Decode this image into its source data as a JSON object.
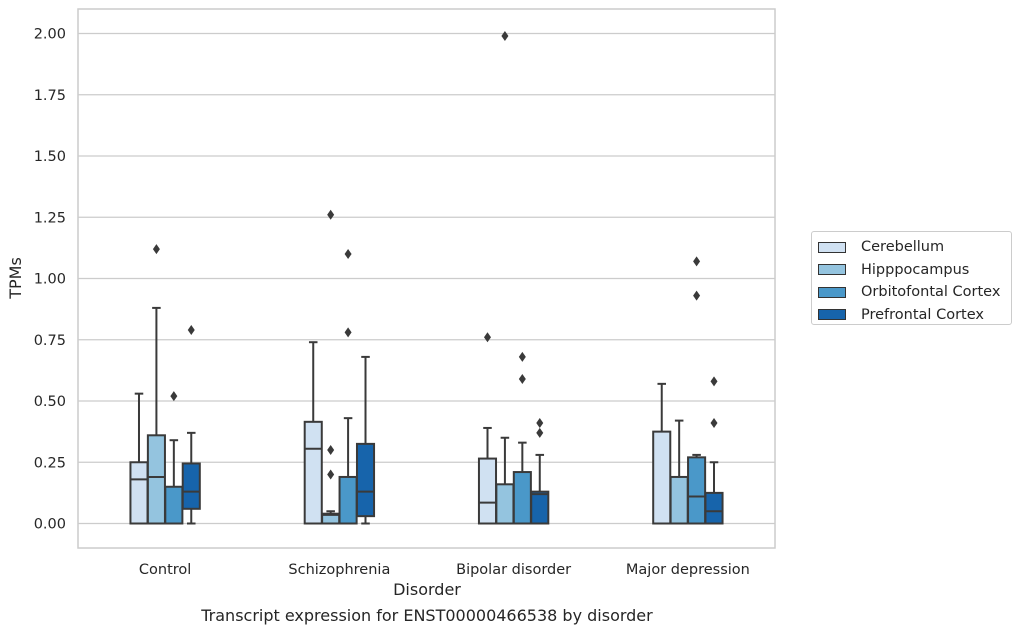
{
  "chart_data": {
    "type": "box",
    "title": "",
    "xlabel": "Disorder",
    "ylabel": "TPMs",
    "caption": "Transcript expression for ENST00000466538 by disorder",
    "ylim": [
      -0.1,
      2.1
    ],
    "yticks": [
      "0.00",
      "0.25",
      "0.50",
      "0.75",
      "1.00",
      "1.25",
      "1.50",
      "1.75",
      "2.00"
    ],
    "grid": "horizontal",
    "legend_position": "right",
    "categories": [
      "Control",
      "Schizophrenia",
      "Bipolar disorder",
      "Major depression"
    ],
    "series": [
      {
        "name": "Cerebellum",
        "color": "#d0e1f2",
        "boxes": [
          {
            "min": 0.0,
            "q1": 0.0,
            "median": 0.18,
            "q3": 0.25,
            "max": 0.53,
            "outliers": []
          },
          {
            "min": 0.0,
            "q1": 0.0,
            "median": 0.305,
            "q3": 0.415,
            "max": 0.74,
            "outliers": []
          },
          {
            "min": 0.0,
            "q1": 0.0,
            "median": 0.085,
            "q3": 0.265,
            "max": 0.39,
            "outliers": [
              0.76
            ]
          },
          {
            "min": 0.0,
            "q1": 0.0,
            "median": 0.0,
            "q3": 0.375,
            "max": 0.57,
            "outliers": []
          }
        ]
      },
      {
        "name": "Hipppocampus",
        "color": "#94c4df",
        "boxes": [
          {
            "min": 0.0,
            "q1": 0.0,
            "median": 0.19,
            "q3": 0.36,
            "max": 0.88,
            "outliers": [
              1.12
            ]
          },
          {
            "min": 0.0,
            "q1": 0.0,
            "median": 0.035,
            "q3": 0.04,
            "max": 0.05,
            "outliers": [
              0.2,
              0.3,
              1.26
            ]
          },
          {
            "min": 0.0,
            "q1": 0.0,
            "median": 0.0,
            "q3": 0.16,
            "max": 0.35,
            "outliers": [
              1.99
            ]
          },
          {
            "min": 0.0,
            "q1": 0.0,
            "median": 0.0,
            "q3": 0.19,
            "max": 0.42,
            "outliers": []
          }
        ]
      },
      {
        "name": "Orbitofontal Cortex",
        "color": "#4a98c9",
        "boxes": [
          {
            "min": 0.0,
            "q1": 0.0,
            "median": 0.0,
            "q3": 0.15,
            "max": 0.34,
            "outliers": [
              0.52
            ]
          },
          {
            "min": 0.0,
            "q1": 0.0,
            "median": 0.0,
            "q3": 0.19,
            "max": 0.43,
            "outliers": [
              0.78,
              1.1
            ]
          },
          {
            "min": 0.0,
            "q1": 0.0,
            "median": 0.0,
            "q3": 0.21,
            "max": 0.33,
            "outliers": [
              0.59,
              0.68
            ]
          },
          {
            "min": 0.0,
            "q1": 0.0,
            "median": 0.11,
            "q3": 0.27,
            "max": 0.28,
            "outliers": [
              0.93,
              1.07
            ]
          }
        ]
      },
      {
        "name": "Prefrontal Cortex",
        "color": "#1764ab",
        "boxes": [
          {
            "min": 0.0,
            "q1": 0.06,
            "median": 0.13,
            "q3": 0.245,
            "max": 0.37,
            "outliers": [
              0.79
            ]
          },
          {
            "min": 0.0,
            "q1": 0.03,
            "median": 0.13,
            "q3": 0.325,
            "max": 0.68,
            "outliers": []
          },
          {
            "min": 0.0,
            "q1": 0.0,
            "median": 0.12,
            "q3": 0.13,
            "max": 0.28,
            "outliers": [
              0.37,
              0.41
            ]
          },
          {
            "min": 0.0,
            "q1": 0.0,
            "median": 0.05,
            "q3": 0.125,
            "max": 0.25,
            "outliers": [
              0.41,
              0.58
            ]
          }
        ]
      }
    ]
  }
}
